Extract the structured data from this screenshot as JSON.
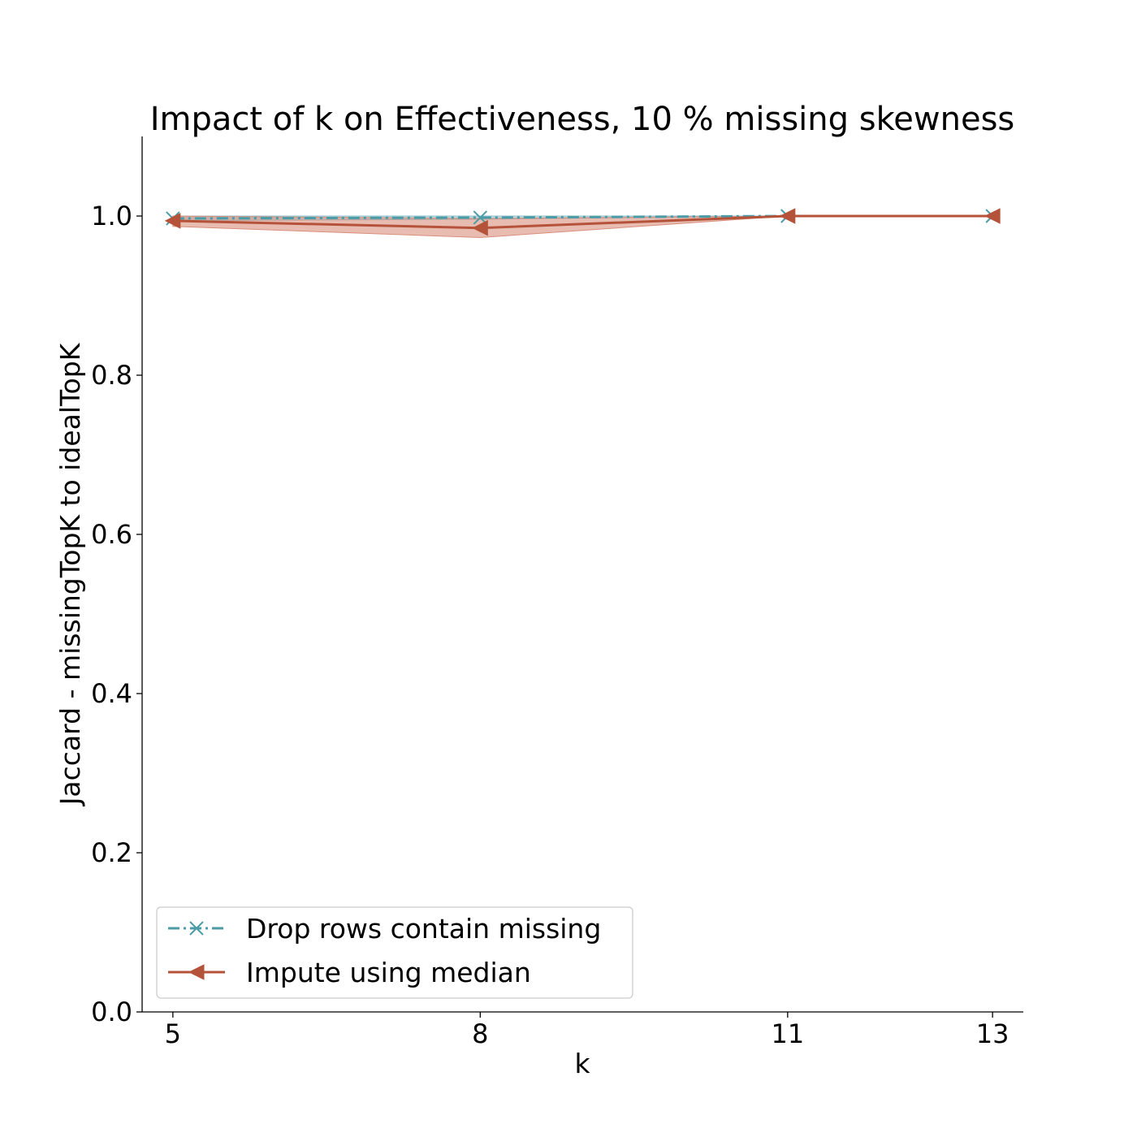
{
  "chart_data": {
    "type": "line",
    "title": "Impact of k on Effectiveness, 10 % missing skewness",
    "xlabel": "k",
    "ylabel": "Jaccard - missingTopK to idealTopK",
    "x": [
      5,
      8,
      11,
      13
    ],
    "xlim": [
      4.7,
      13.3
    ],
    "ylim": [
      0.0,
      1.1
    ],
    "xticks": [
      5,
      8,
      11,
      13
    ],
    "xtick_labels": [
      "5",
      "8",
      "11",
      "13"
    ],
    "yticks": [
      0.0,
      0.2,
      0.4,
      0.6,
      0.8,
      1.0
    ],
    "ytick_labels": [
      "0.0",
      "0.2",
      "0.4",
      "0.6",
      "0.8",
      "1.0"
    ],
    "grid": false,
    "legend_position": "lower-left",
    "series": [
      {
        "name": "Drop rows contain missing",
        "values": [
          0.997,
          0.998,
          1.0,
          1.0
        ],
        "band_low": [
          0.994,
          0.996,
          1.0,
          1.0
        ],
        "band_high": [
          1.0,
          1.0,
          1.0,
          1.0
        ],
        "color": "#4c9ca7",
        "band_color": "#8fc1cb",
        "marker": "x",
        "line_style": "dash-dot"
      },
      {
        "name": "Impute using median",
        "values": [
          0.994,
          0.985,
          1.0,
          1.0
        ],
        "band_low": [
          0.987,
          0.973,
          1.0,
          1.0
        ],
        "band_high": [
          1.0,
          0.997,
          1.0,
          1.0
        ],
        "color": "#b5533a",
        "band_color": "#d98f7d",
        "marker": "triangle-left",
        "line_style": "solid"
      }
    ]
  }
}
